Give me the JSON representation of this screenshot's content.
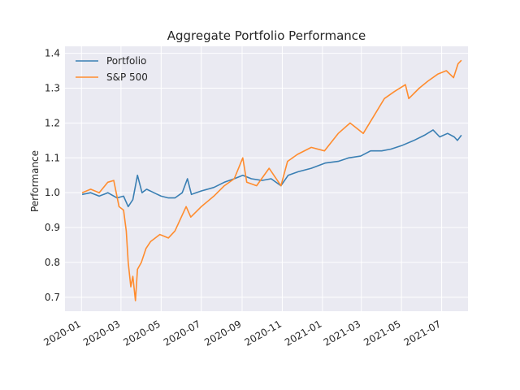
{
  "chart_data": {
    "type": "line",
    "title": "Aggregate Portfolio Performance",
    "xlabel": "",
    "ylabel": "Performance",
    "xlim": [
      "2019-12-07",
      "2021-08-10"
    ],
    "ylim": [
      0.66,
      1.42
    ],
    "grid": true,
    "legend_position": "top-left",
    "x_tick_labels": [
      "2020-01",
      "2020-03",
      "2020-05",
      "2020-07",
      "2020-09",
      "2020-11",
      "2021-01",
      "2021-03",
      "2021-05",
      "2021-07"
    ],
    "y_tick_labels": [
      "0.7",
      "0.8",
      "0.9",
      "1.0",
      "1.1",
      "1.2",
      "1.3",
      "1.4"
    ],
    "y_ticks": [
      0.7,
      0.8,
      0.9,
      1.0,
      1.1,
      1.2,
      1.3,
      1.4
    ],
    "series": [
      {
        "name": "Portfolio",
        "color": "#3a7fb3",
        "points": [
          [
            "2020-01-02",
            0.995
          ],
          [
            "2020-01-15",
            1.0
          ],
          [
            "2020-01-28",
            0.99
          ],
          [
            "2020-02-10",
            1.0
          ],
          [
            "2020-02-24",
            0.985
          ],
          [
            "2020-03-05",
            0.99
          ],
          [
            "2020-03-12",
            0.96
          ],
          [
            "2020-03-19",
            0.98
          ],
          [
            "2020-03-26",
            1.05
          ],
          [
            "2020-04-02",
            1.0
          ],
          [
            "2020-04-09",
            1.01
          ],
          [
            "2020-04-20",
            1.0
          ],
          [
            "2020-05-01",
            0.99
          ],
          [
            "2020-05-12",
            0.985
          ],
          [
            "2020-05-22",
            0.985
          ],
          [
            "2020-06-02",
            1.0
          ],
          [
            "2020-06-10",
            1.04
          ],
          [
            "2020-06-16",
            0.995
          ],
          [
            "2020-07-01",
            1.005
          ],
          [
            "2020-07-20",
            1.015
          ],
          [
            "2020-08-05",
            1.03
          ],
          [
            "2020-08-20",
            1.04
          ],
          [
            "2020-09-02",
            1.05
          ],
          [
            "2020-09-15",
            1.04
          ],
          [
            "2020-10-01",
            1.035
          ],
          [
            "2020-10-15",
            1.04
          ],
          [
            "2020-10-30",
            1.02
          ],
          [
            "2020-11-10",
            1.05
          ],
          [
            "2020-11-25",
            1.06
          ],
          [
            "2020-12-15",
            1.07
          ],
          [
            "2021-01-05",
            1.085
          ],
          [
            "2021-01-25",
            1.09
          ],
          [
            "2021-02-10",
            1.1
          ],
          [
            "2021-02-28",
            1.105
          ],
          [
            "2021-03-15",
            1.12
          ],
          [
            "2021-04-01",
            1.12
          ],
          [
            "2021-04-15",
            1.125
          ],
          [
            "2021-05-01",
            1.135
          ],
          [
            "2021-05-20",
            1.15
          ],
          [
            "2021-06-05",
            1.165
          ],
          [
            "2021-06-18",
            1.18
          ],
          [
            "2021-06-28",
            1.16
          ],
          [
            "2021-07-10",
            1.17
          ],
          [
            "2021-07-20",
            1.16
          ],
          [
            "2021-07-25",
            1.15
          ],
          [
            "2021-07-31",
            1.165
          ]
        ]
      },
      {
        "name": "S&P 500",
        "color": "#ff8c2e",
        "points": [
          [
            "2020-01-02",
            1.0
          ],
          [
            "2020-01-15",
            1.01
          ],
          [
            "2020-01-28",
            1.0
          ],
          [
            "2020-02-10",
            1.03
          ],
          [
            "2020-02-19",
            1.035
          ],
          [
            "2020-02-27",
            0.96
          ],
          [
            "2020-03-05",
            0.95
          ],
          [
            "2020-03-09",
            0.89
          ],
          [
            "2020-03-12",
            0.8
          ],
          [
            "2020-03-16",
            0.73
          ],
          [
            "2020-03-19",
            0.76
          ],
          [
            "2020-03-23",
            0.69
          ],
          [
            "2020-03-26",
            0.78
          ],
          [
            "2020-04-01",
            0.8
          ],
          [
            "2020-04-08",
            0.84
          ],
          [
            "2020-04-15",
            0.86
          ],
          [
            "2020-04-29",
            0.88
          ],
          [
            "2020-05-12",
            0.87
          ],
          [
            "2020-05-22",
            0.89
          ],
          [
            "2020-06-03",
            0.94
          ],
          [
            "2020-06-08",
            0.96
          ],
          [
            "2020-06-15",
            0.93
          ],
          [
            "2020-07-01",
            0.96
          ],
          [
            "2020-07-20",
            0.99
          ],
          [
            "2020-08-05",
            1.02
          ],
          [
            "2020-08-20",
            1.04
          ],
          [
            "2020-09-02",
            1.1
          ],
          [
            "2020-09-08",
            1.03
          ],
          [
            "2020-09-23",
            1.02
          ],
          [
            "2020-10-12",
            1.07
          ],
          [
            "2020-10-30",
            1.02
          ],
          [
            "2020-11-09",
            1.09
          ],
          [
            "2020-11-24",
            1.11
          ],
          [
            "2020-12-15",
            1.13
          ],
          [
            "2021-01-04",
            1.12
          ],
          [
            "2021-01-25",
            1.17
          ],
          [
            "2021-02-12",
            1.2
          ],
          [
            "2021-03-04",
            1.17
          ],
          [
            "2021-03-20",
            1.22
          ],
          [
            "2021-04-05",
            1.27
          ],
          [
            "2021-04-20",
            1.29
          ],
          [
            "2021-05-07",
            1.31
          ],
          [
            "2021-05-12",
            1.27
          ],
          [
            "2021-05-28",
            1.3
          ],
          [
            "2021-06-10",
            1.32
          ],
          [
            "2021-06-25",
            1.34
          ],
          [
            "2021-07-08",
            1.35
          ],
          [
            "2021-07-19",
            1.33
          ],
          [
            "2021-07-26",
            1.37
          ],
          [
            "2021-07-31",
            1.38
          ]
        ]
      }
    ]
  }
}
